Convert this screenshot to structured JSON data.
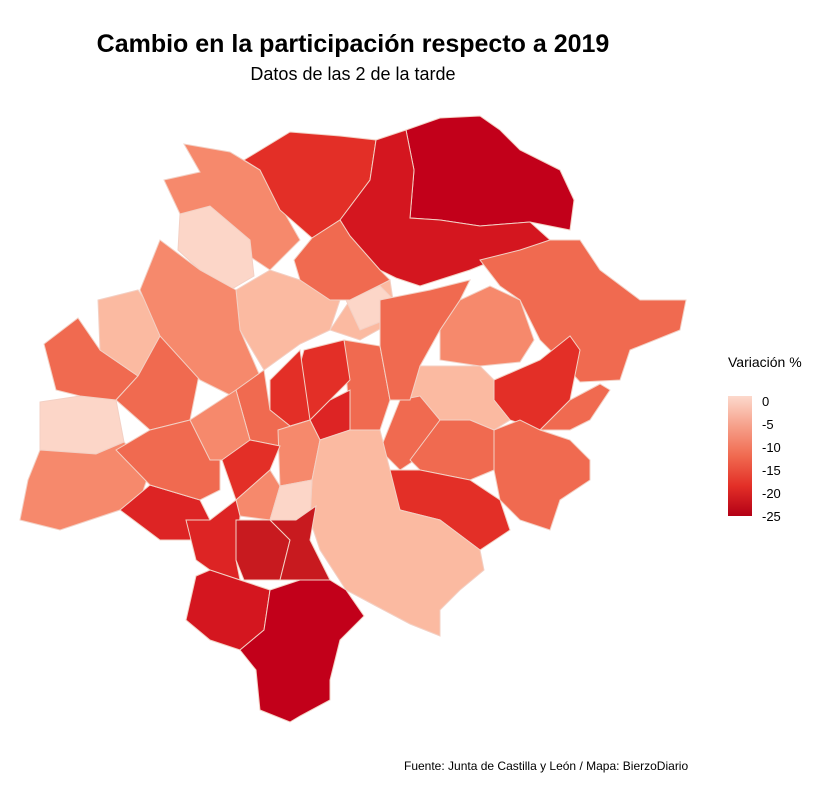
{
  "title": "Cambio en la participación respecto a 2019",
  "subtitle": "Datos de las 2 de la tarde",
  "source": "Fuente: Junta de Castilla y León / Mapa: BierzoDiario",
  "legend": {
    "title": "Variación %",
    "ticks": [
      "0",
      "-5",
      "-10",
      "-15",
      "-20",
      "-25"
    ],
    "tick_values": [
      0,
      -5,
      -10,
      -15,
      -20,
      -25
    ],
    "color_low": "#b30016",
    "color_high": "#fcd9cc"
  },
  "colors": {
    "light": "#fcd6c8",
    "pale": "#fbbaa1",
    "medium": "#f6896c",
    "mid_dark": "#f06a50",
    "red": "#e32f27",
    "dark_red": "#d4161f",
    "darkest": "#c2001a",
    "border": "#f3d0c4"
  }
}
